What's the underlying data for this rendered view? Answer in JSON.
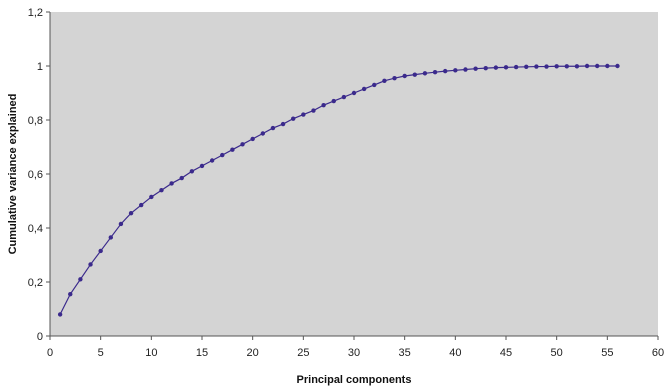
{
  "chart_data": {
    "type": "line",
    "title": "",
    "xlabel": "Principal components",
    "ylabel": "Cumulative variance explained",
    "xlim": [
      0,
      60
    ],
    "ylim": [
      0,
      1.2
    ],
    "x_ticks": [
      0,
      5,
      10,
      15,
      20,
      25,
      30,
      35,
      40,
      45,
      50,
      55,
      60
    ],
    "x_tick_labels": [
      "0",
      "5",
      "10",
      "15",
      "20",
      "25",
      "30",
      "35",
      "40",
      "45",
      "50",
      "55",
      "60"
    ],
    "y_ticks": [
      0,
      0.2,
      0.4,
      0.6,
      0.8,
      1,
      1.2
    ],
    "y_tick_labels": [
      "0",
      "0,2",
      "0,4",
      "0,6",
      "0,8",
      "1",
      "1,2"
    ],
    "grid": false,
    "legend": "none",
    "plot_background": "#d4d4d4",
    "series": [
      {
        "color": "#3b2a8c",
        "x": [
          1,
          2,
          3,
          4,
          5,
          6,
          7,
          8,
          9,
          10,
          11,
          12,
          13,
          14,
          15,
          16,
          17,
          18,
          19,
          20,
          21,
          22,
          23,
          24,
          25,
          26,
          27,
          28,
          29,
          30,
          31,
          32,
          33,
          34,
          35,
          36,
          37,
          38,
          39,
          40,
          41,
          42,
          43,
          44,
          45,
          46,
          47,
          48,
          49,
          50,
          51,
          52,
          53,
          54,
          55,
          56
        ],
        "y": [
          0.08,
          0.155,
          0.21,
          0.265,
          0.315,
          0.365,
          0.415,
          0.455,
          0.485,
          0.515,
          0.54,
          0.565,
          0.585,
          0.61,
          0.63,
          0.65,
          0.67,
          0.69,
          0.71,
          0.73,
          0.75,
          0.77,
          0.785,
          0.805,
          0.82,
          0.835,
          0.855,
          0.87,
          0.885,
          0.9,
          0.915,
          0.93,
          0.945,
          0.955,
          0.963,
          0.968,
          0.973,
          0.977,
          0.981,
          0.984,
          0.987,
          0.99,
          0.992,
          0.994,
          0.995,
          0.996,
          0.997,
          0.998,
          0.998,
          0.999,
          0.999,
          0.999,
          1.0,
          1.0,
          1.0,
          1.0
        ]
      }
    ]
  }
}
